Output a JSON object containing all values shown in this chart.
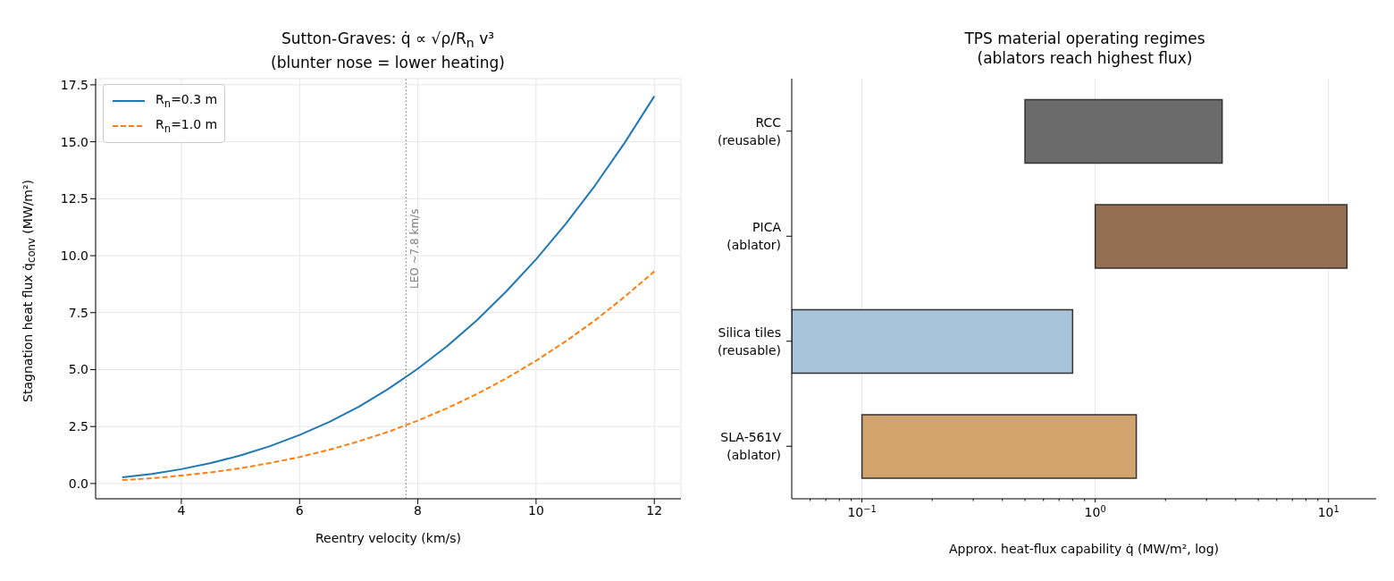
{
  "chart_data": [
    {
      "type": "line",
      "title": "Sutton-Graves: q̇ ∝ √ρ/R$_{n}$ v³",
      "subtitle": "(blunter nose = lower heating)",
      "xlabel": "Reentry velocity (km/s)",
      "ylabel": "Stagnation heat flux q̇$_{conv}$ (MW/m²)",
      "x": [
        3,
        3.5,
        4,
        4.5,
        5,
        5.5,
        6,
        6.5,
        7,
        7.5,
        8,
        8.5,
        9,
        9.5,
        10,
        10.5,
        11,
        11.5,
        12
      ],
      "series": [
        {
          "name": "R$_{n}$=0.3 m",
          "color": "#1f77b4",
          "line_style": "solid",
          "values": [
            0.27,
            0.42,
            0.63,
            0.9,
            1.23,
            1.64,
            2.13,
            2.7,
            3.37,
            4.15,
            5.04,
            6.04,
            7.17,
            8.44,
            9.84,
            11.39,
            13.09,
            14.96,
            17.0
          ]
        },
        {
          "name": "R$_{n}$=1.0 m",
          "color": "#ff7f0e",
          "line_style": "dashed",
          "values": [
            0.15,
            0.23,
            0.35,
            0.49,
            0.67,
            0.9,
            1.16,
            1.48,
            1.85,
            2.27,
            2.76,
            3.31,
            3.93,
            4.62,
            5.39,
            6.24,
            7.17,
            8.2,
            9.31
          ]
        }
      ],
      "xlim": [
        2.55,
        12.45
      ],
      "xticks": [
        4,
        6,
        8,
        10,
        12
      ],
      "ylim": [
        -0.67,
        17.77
      ],
      "yticks": [
        {
          "value": 0,
          "label": "0.0"
        },
        {
          "value": 2.5,
          "label": "2.5"
        },
        {
          "value": 5,
          "label": "5.0"
        },
        {
          "value": 7.5,
          "label": "7.5"
        },
        {
          "value": 10,
          "label": "10.0"
        },
        {
          "value": 12.5,
          "label": "12.5"
        },
        {
          "value": 15,
          "label": "15.0"
        },
        {
          "value": 17.5,
          "label": "17.5"
        }
      ],
      "grid": true,
      "legend": "top left",
      "marker": "none",
      "ref_lines": [
        {
          "axis": "x",
          "value": 7.8,
          "label": "LEO ~7.8 km/s",
          "color": "#808080",
          "line_style": "dotted"
        }
      ]
    },
    {
      "type": "bar",
      "orientation": "horizontal",
      "title": "TPS material operating regimes",
      "subtitle": "(ablators reach highest flux)",
      "xlabel": "Approx. heat-flux capability q̇ (MW/m², log)",
      "categories": [
        "RCC\n(reusable)",
        "PICA\n(ablator)",
        "Silica tiles\n(reusable)",
        "SLA-561V\n(ablator)"
      ],
      "base": [
        0.5,
        1,
        0.05,
        0.1
      ],
      "values": [
        3,
        11,
        0.75,
        1.4
      ],
      "colors": [
        "#6b6b6b",
        "#956f52",
        "#a7c4da",
        "#d2a46d"
      ],
      "log": "x",
      "xlim": [
        0.05,
        16
      ],
      "xticks": [
        {
          "value": 0.06,
          "label": null
        },
        {
          "value": 0.07,
          "label": null
        },
        {
          "value": 0.08,
          "label": null
        },
        {
          "value": 0.09,
          "label": null
        },
        {
          "value": 0.1,
          "label": "10$^{−1}$"
        },
        {
          "value": 0.2,
          "label": null
        },
        {
          "value": 0.3,
          "label": null
        },
        {
          "value": 0.4,
          "label": null
        },
        {
          "value": 0.5,
          "label": null
        },
        {
          "value": 0.6,
          "label": null
        },
        {
          "value": 0.7,
          "label": null
        },
        {
          "value": 0.8,
          "label": null
        },
        {
          "value": 0.9,
          "label": null
        },
        {
          "value": 1,
          "label": "10$^{0}$"
        },
        {
          "value": 2,
          "label": null
        },
        {
          "value": 3,
          "label": null
        },
        {
          "value": 4,
          "label": null
        },
        {
          "value": 5,
          "label": null
        },
        {
          "value": 6,
          "label": null
        },
        {
          "value": 7,
          "label": null
        },
        {
          "value": 8,
          "label": null
        },
        {
          "value": 9,
          "label": null
        },
        {
          "value": 10,
          "label": "10$^{1}$"
        }
      ],
      "grid": "x"
    }
  ]
}
